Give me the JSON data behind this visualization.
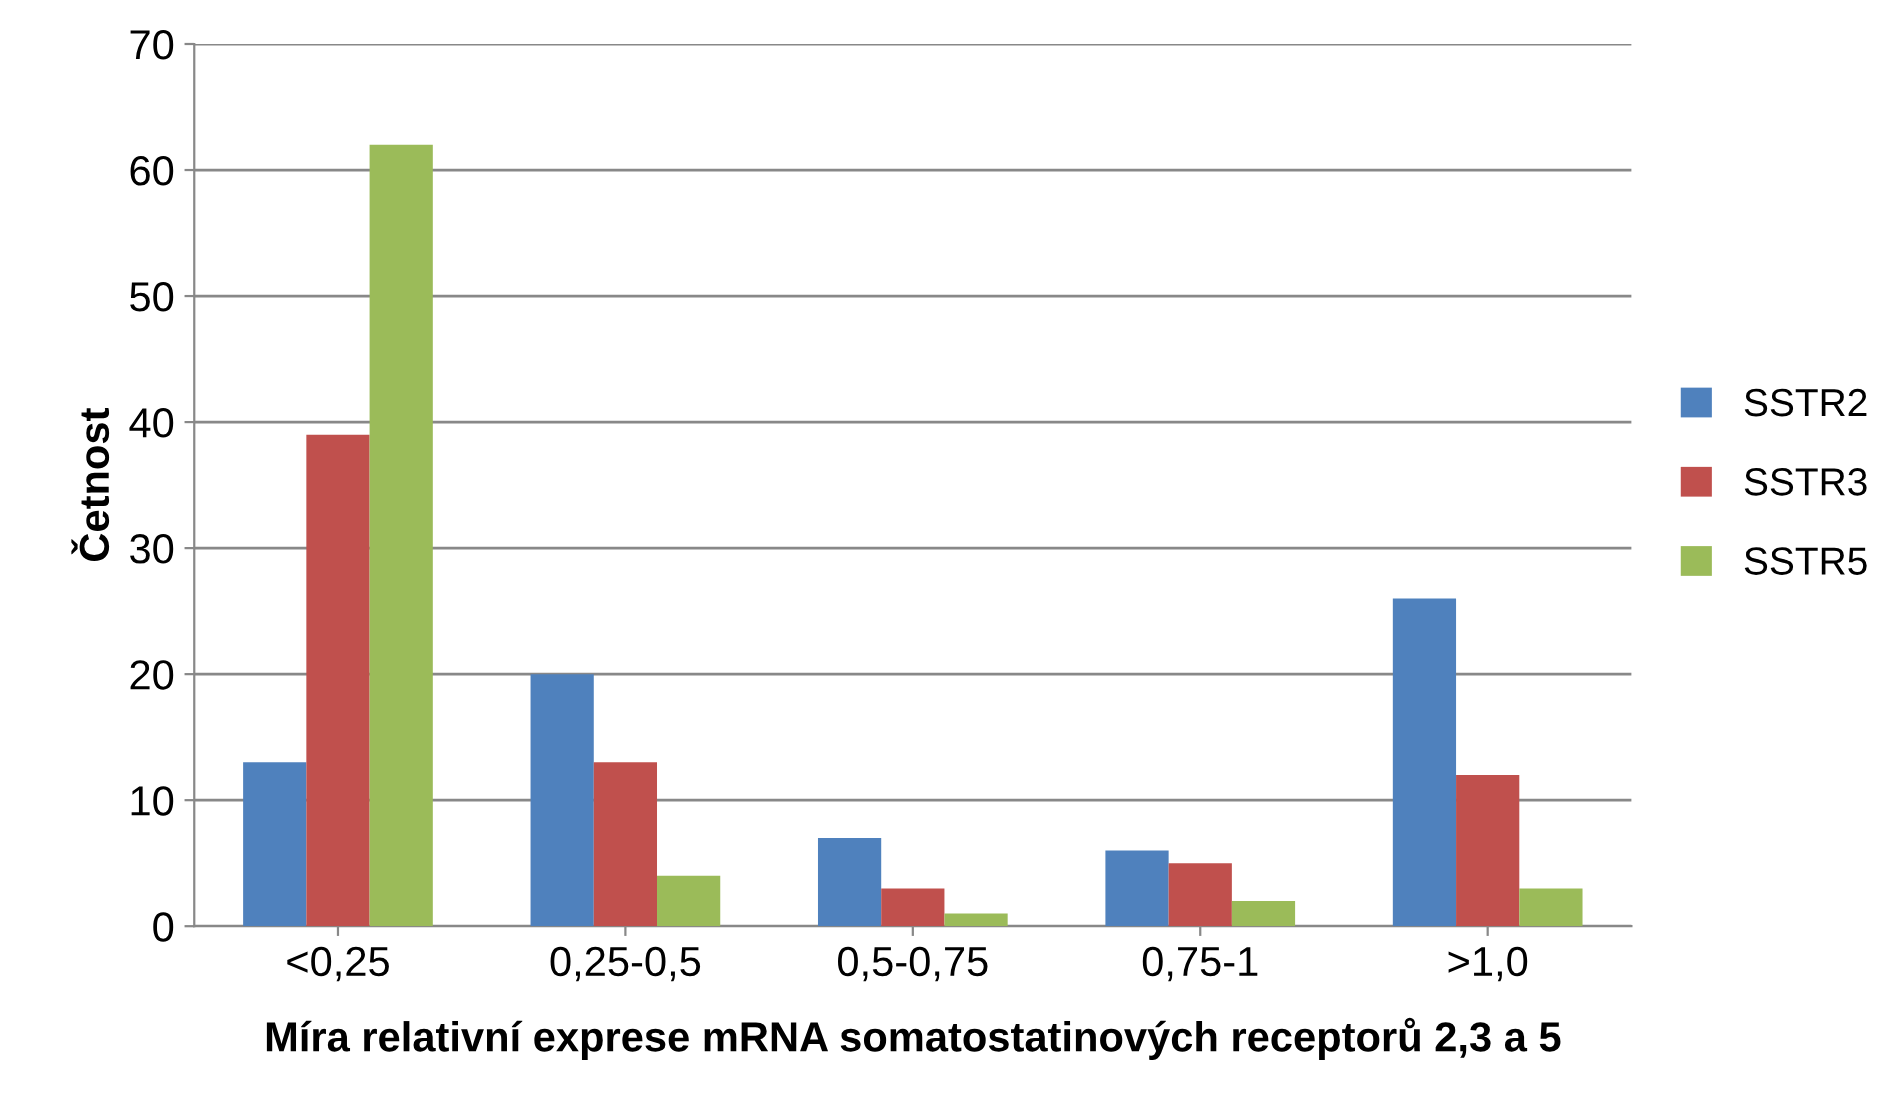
{
  "chart_data": {
    "type": "bar",
    "xlabel": "Míra relativní exprese mRNA somatostatinových receptorů 2,3 a 5",
    "ylabel": "Četnost",
    "categories": [
      "<0,25",
      "0,25-0,5",
      "0,5-0,75",
      "0,75-1",
      ">1,0"
    ],
    "series": [
      {
        "name": "SSTR2",
        "color": "#4f81bd",
        "values": [
          13,
          20,
          7,
          6,
          26
        ]
      },
      {
        "name": "SSTR3",
        "color": "#c0504d",
        "values": [
          39,
          13,
          3,
          5,
          12
        ]
      },
      {
        "name": "SSTR5",
        "color": "#9bbb59",
        "values": [
          62,
          4,
          1,
          2,
          3
        ]
      }
    ],
    "ylim": [
      0,
      70
    ],
    "yticks": [
      0,
      10,
      20,
      30,
      40,
      50,
      60,
      70
    ],
    "grid": "y",
    "legend": "right"
  }
}
